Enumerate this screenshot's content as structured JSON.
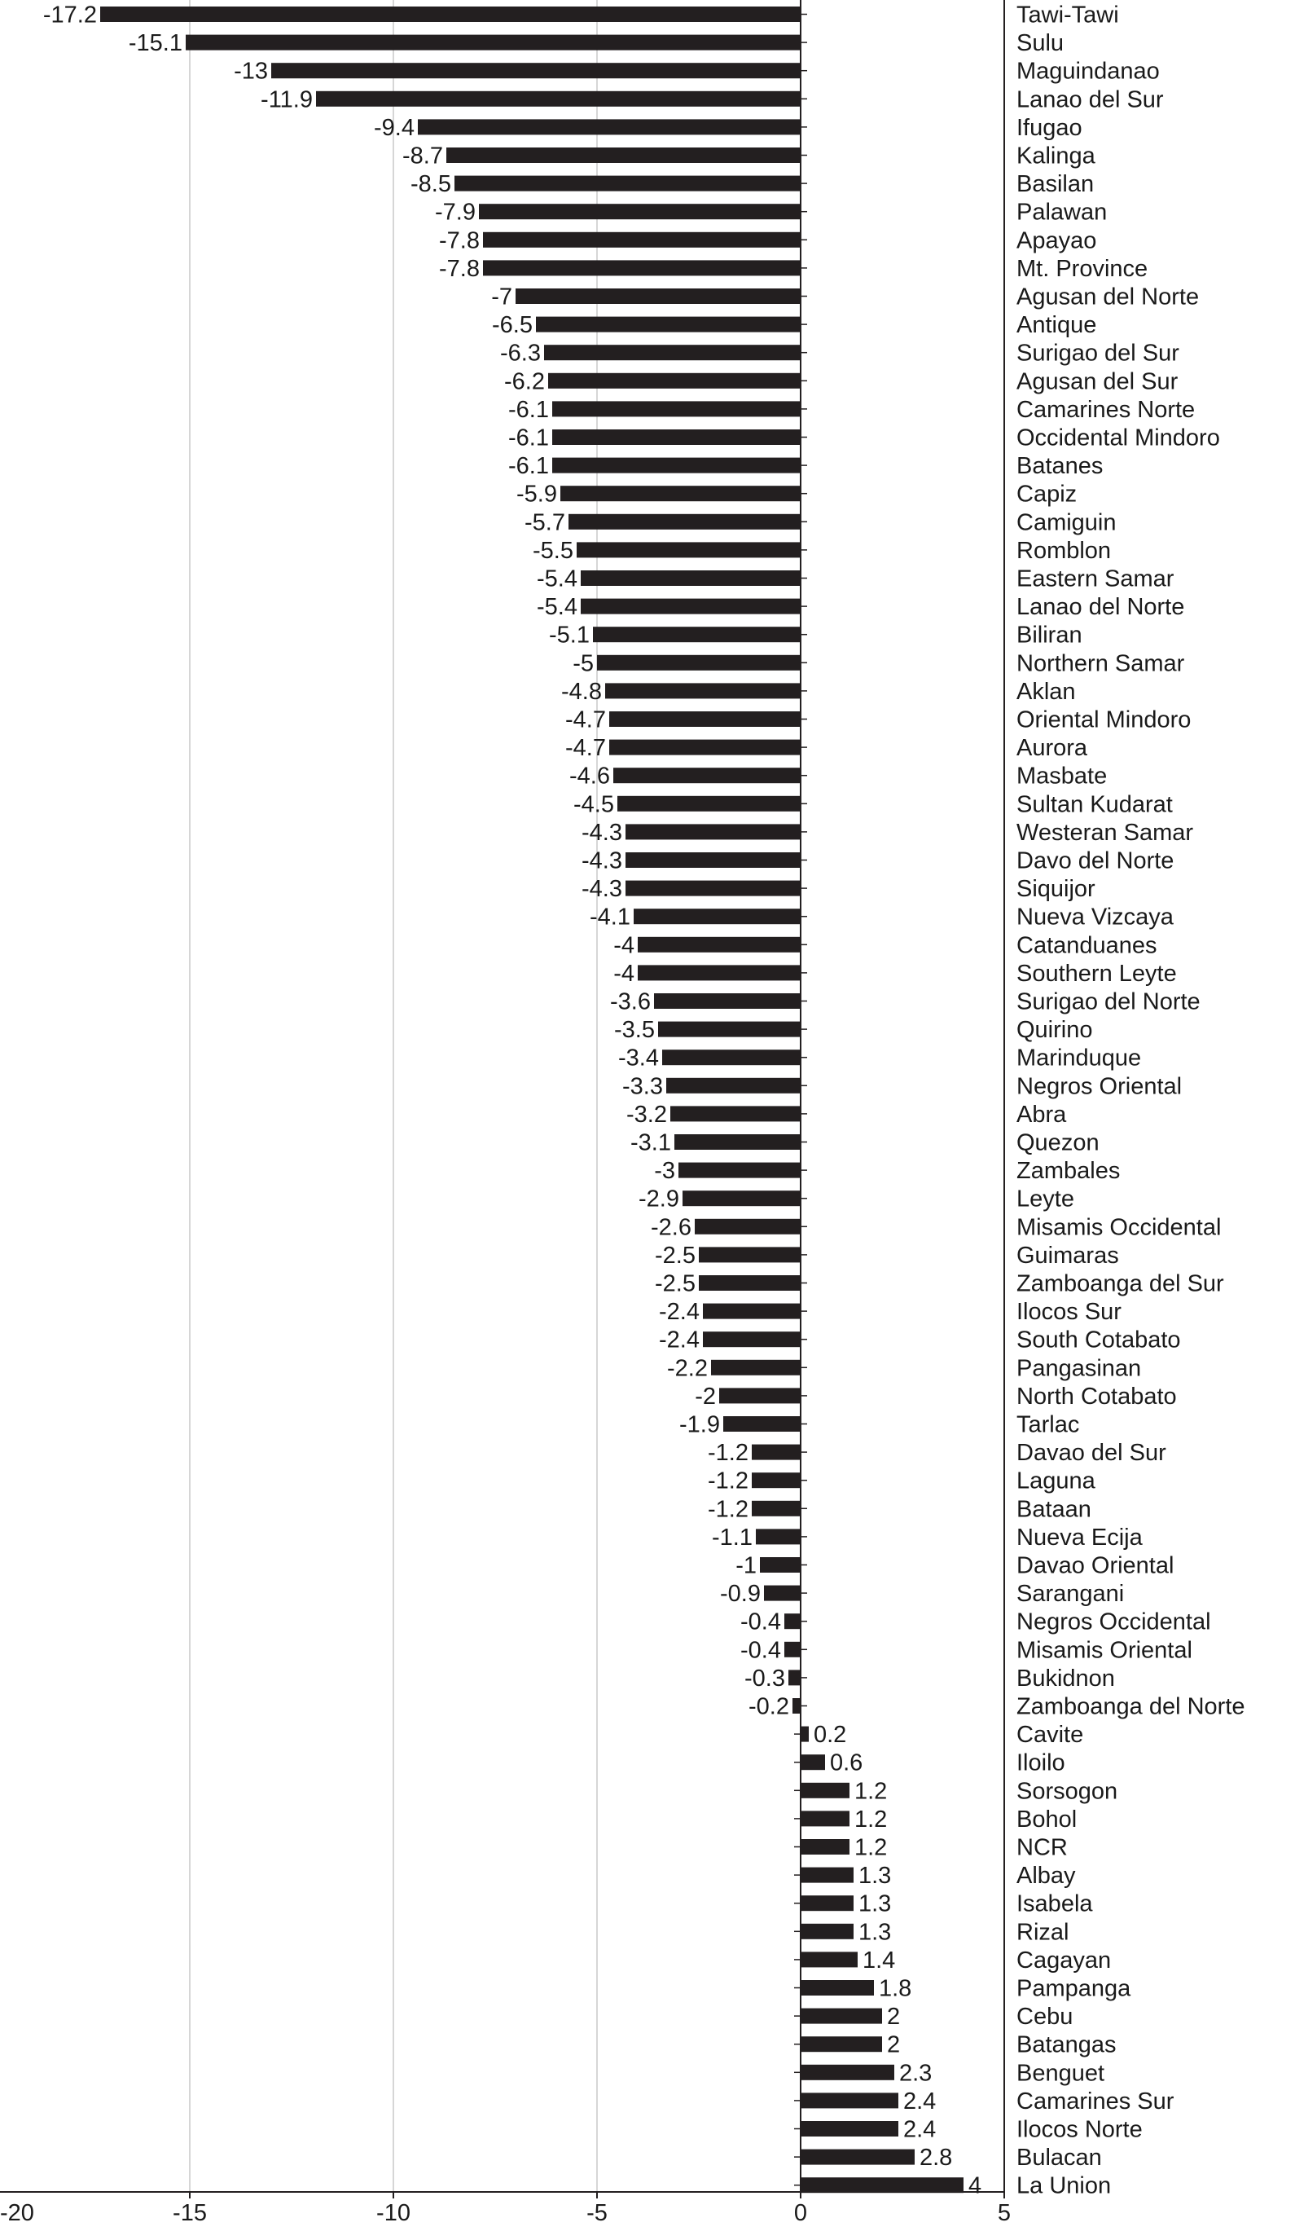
{
  "chart_data": {
    "type": "bar",
    "orientation": "horizontal",
    "title": "",
    "xlabel": "",
    "ylabel": "",
    "xlim": [
      -20,
      5
    ],
    "xticks": [
      -20,
      -15,
      -10,
      -5,
      0,
      5
    ],
    "xtick_labels": [
      "-20",
      "-15",
      "-10",
      "-5",
      "0",
      "5"
    ],
    "grid": "vertical",
    "legend": "none",
    "bar_color": "#231f20",
    "grid_color": "#c8c8c8",
    "categories": [
      "Tawi-Tawi",
      "Sulu",
      "Maguindanao",
      "Lanao del Sur",
      "Ifugao",
      "Kalinga",
      "Basilan",
      "Palawan",
      "Apayao",
      "Mt. Province",
      "Agusan del Norte",
      "Antique",
      "Surigao del Sur",
      "Agusan del Sur",
      "Camarines Norte",
      "Occidental Mindoro",
      "Batanes",
      "Capiz",
      "Camiguin",
      "Romblon",
      "Eastern Samar",
      "Lanao del Norte",
      "Biliran",
      "Northern Samar",
      "Aklan",
      "Oriental Mindoro",
      "Aurora",
      "Masbate",
      "Sultan Kudarat",
      "Westeran Samar",
      "Davo del Norte",
      "Siquijor",
      "Nueva Vizcaya",
      "Catanduanes",
      "Southern Leyte",
      "Surigao del Norte",
      "Quirino",
      "Marinduque",
      "Negros Oriental",
      "Abra",
      "Quezon",
      "Zambales",
      "Leyte",
      "Misamis Occidental",
      "Guimaras",
      "Zamboanga del Sur",
      "Ilocos Sur",
      "South Cotabato",
      "Pangasinan",
      "North Cotabato",
      "Tarlac",
      "Davao del Sur",
      "Laguna",
      "Bataan",
      "Nueva Ecija",
      "Davao Oriental",
      "Sarangani",
      "Negros Occidental",
      "Misamis Oriental",
      "Bukidnon",
      "Zamboanga del Norte",
      "Cavite",
      "Iloilo",
      "Sorsogon",
      "Bohol",
      "NCR",
      "Albay",
      "Isabela",
      "Rizal",
      "Cagayan",
      "Pampanga",
      "Cebu",
      "Batangas",
      "Benguet",
      "Camarines Sur",
      "Ilocos Norte",
      "Bulacan",
      "La Union"
    ],
    "values": [
      -17.2,
      -15.1,
      -13,
      -11.9,
      -9.4,
      -8.7,
      -8.5,
      -7.9,
      -7.8,
      -7.8,
      -7,
      -6.5,
      -6.3,
      -6.2,
      -6.1,
      -6.1,
      -6.1,
      -5.9,
      -5.7,
      -5.5,
      -5.4,
      -5.4,
      -5.1,
      -5,
      -4.8,
      -4.7,
      -4.7,
      -4.6,
      -4.5,
      -4.3,
      -4.3,
      -4.3,
      -4.1,
      -4,
      -4,
      -3.6,
      -3.5,
      -3.4,
      -3.3,
      -3.2,
      -3.1,
      -3,
      -2.9,
      -2.6,
      -2.5,
      -2.5,
      -2.4,
      -2.4,
      -2.2,
      -2,
      -1.9,
      -1.2,
      -1.2,
      -1.2,
      -1.1,
      -1,
      -0.9,
      -0.4,
      -0.4,
      -0.3,
      -0.2,
      0.2,
      0.6,
      1.2,
      1.2,
      1.2,
      1.3,
      1.3,
      1.3,
      1.4,
      1.8,
      2,
      2,
      2.3,
      2.4,
      2.4,
      2.8,
      4
    ],
    "value_labels": [
      "-17.2",
      "-15.1",
      "-13",
      "-11.9",
      "-9.4",
      "-8.7",
      "-8.5",
      "-7.9",
      "-7.8",
      "-7.8",
      "-7",
      "-6.5",
      "-6.3",
      "-6.2",
      "-6.1",
      "-6.1",
      "-6.1",
      "-5.9",
      "-5.7",
      "-5.5",
      "-5.4",
      "-5.4",
      "-5.1",
      "-5",
      "-4.8",
      "-4.7",
      "-4.7",
      "-4.6",
      "-4.5",
      "-4.3",
      "-4.3",
      "-4.3",
      "-4.1",
      "-4",
      "-4",
      "-3.6",
      "-3.5",
      "-3.4",
      "-3.3",
      "-3.2",
      "-3.1",
      "-3",
      "-2.9",
      "-2.6",
      "-2.5",
      "-2.5",
      "-2.4",
      "-2.4",
      "-2.2",
      "-2",
      "-1.9",
      "-1.2",
      "-1.2",
      "-1.2",
      "-1.1",
      "-1",
      "-0.9",
      "-0.4",
      "-0.4",
      "-0.3",
      "-0.2",
      "0.2",
      "0.6",
      "1.2",
      "1.2",
      "1.2",
      "1.3",
      "1.3",
      "1.3",
      "1.4",
      "1.8",
      "2",
      "2",
      "2.3",
      "2.4",
      "2.4",
      "2.8",
      "4"
    ]
  }
}
